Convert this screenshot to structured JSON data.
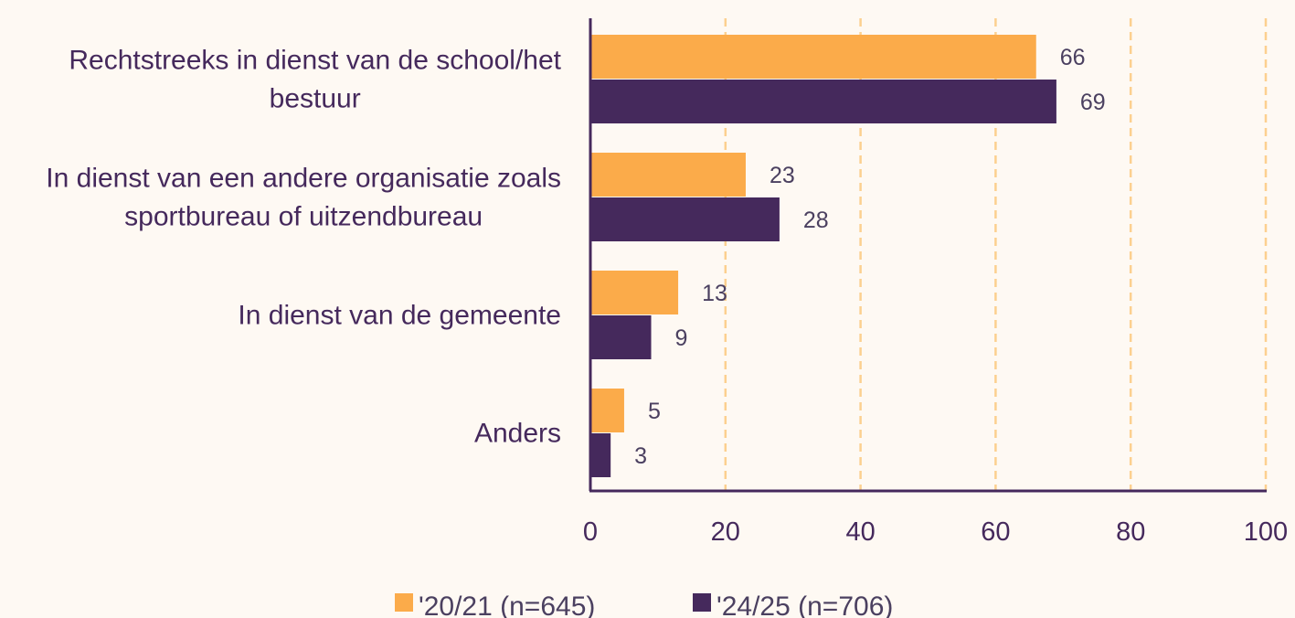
{
  "chart_data": {
    "type": "bar",
    "orientation": "horizontal",
    "categories": [
      [
        "Rechtstreeks in dienst van de school/het",
        "bestuur"
      ],
      [
        "In dienst van een andere organisatie zoals",
        "sportbureau of uitzendbureau"
      ],
      [
        "In dienst van de gemeente"
      ],
      [
        "Anders"
      ]
    ],
    "series": [
      {
        "name": "'20/21 (n=645)",
        "values": [
          66,
          23,
          13,
          5
        ],
        "color": "#fbab4a"
      },
      {
        "name": "'24/25 (n=706)",
        "values": [
          69,
          28,
          9,
          3
        ],
        "color": "#45295c"
      }
    ],
    "xlim": [
      0,
      100
    ],
    "xticks": [
      "0",
      "20",
      "40",
      "60",
      "80",
      "100"
    ],
    "grid": "vertical dashed",
    "grid_color": "#fcd08f",
    "axis_color": "#45295c",
    "legend_position": "bottom",
    "data_labels": true
  }
}
